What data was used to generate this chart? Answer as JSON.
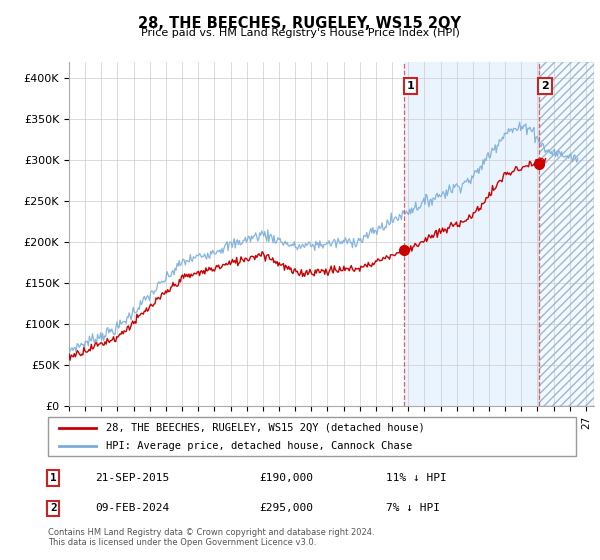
{
  "title": "28, THE BEECHES, RUGELEY, WS15 2QY",
  "subtitle": "Price paid vs. HM Land Registry's House Price Index (HPI)",
  "xlim_start": 1995.0,
  "xlim_end": 2027.5,
  "ylim": [
    0,
    420000
  ],
  "yticks": [
    0,
    50000,
    100000,
    150000,
    200000,
    250000,
    300000,
    350000,
    400000
  ],
  "ytick_labels": [
    "£0",
    "£50K",
    "£100K",
    "£150K",
    "£200K",
    "£250K",
    "£300K",
    "£350K",
    "£400K"
  ],
  "xtick_years": [
    1995,
    1996,
    1997,
    1998,
    1999,
    2000,
    2001,
    2002,
    2003,
    2004,
    2005,
    2006,
    2007,
    2008,
    2009,
    2010,
    2011,
    2012,
    2013,
    2014,
    2015,
    2016,
    2017,
    2018,
    2019,
    2020,
    2021,
    2022,
    2023,
    2024,
    2025,
    2026,
    2027
  ],
  "hpi_color": "#7aaddc",
  "price_color": "#cc0000",
  "sale1_x": 2015.75,
  "sale1_y": 190000,
  "sale2_x": 2024.08,
  "sale2_y": 295000,
  "blue_shade_start": 2015.75,
  "future_shade_start": 2024.08,
  "legend_label1": "28, THE BEECHES, RUGELEY, WS15 2QY (detached house)",
  "legend_label2": "HPI: Average price, detached house, Cannock Chase",
  "annotation1_date": "21-SEP-2015",
  "annotation1_price": "£190,000",
  "annotation1_hpi": "11% ↓ HPI",
  "annotation2_date": "09-FEB-2024",
  "annotation2_price": "£295,000",
  "annotation2_hpi": "7% ↓ HPI",
  "copyright_text": "Contains HM Land Registry data © Crown copyright and database right 2024.\nThis data is licensed under the Open Government Licence v3.0.",
  "background_color": "#ffffff",
  "grid_color": "#cccccc",
  "blue_shade_color": "#ddeeff",
  "hatch_color": "#aabbcc",
  "label1_num": "1",
  "label2_num": "2"
}
